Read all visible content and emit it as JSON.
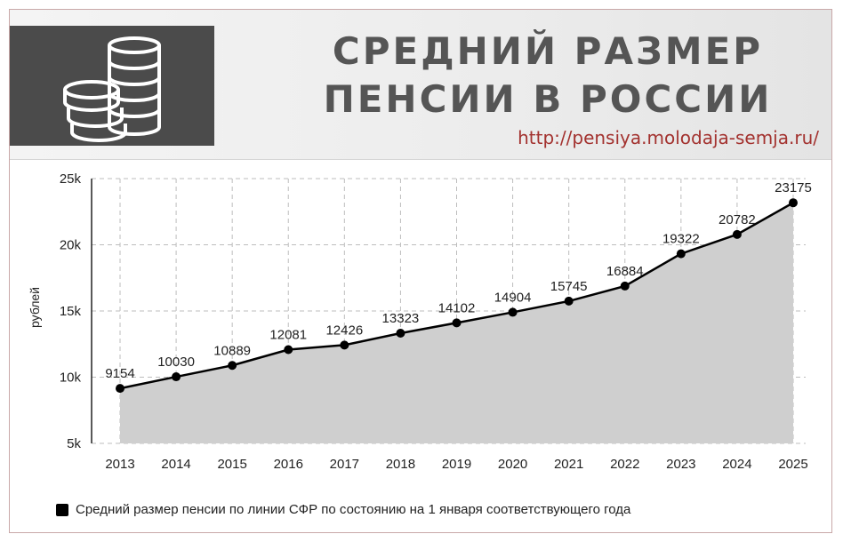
{
  "header": {
    "title_line1": "СРЕДНИЙ РАЗМЕР",
    "title_line2": "ПЕНСИИ В РОССИИ",
    "source_url": "http://pensiya.molodaja-semja.ru/",
    "logo_icon": "coins-icon"
  },
  "chart_data": {
    "type": "area",
    "title": "СРЕДНИЙ РАЗМЕР ПЕНСИИ В РОССИИ",
    "xlabel": "",
    "ylabel": "рублей",
    "categories": [
      "2013",
      "2014",
      "2015",
      "2016",
      "2017",
      "2018",
      "2019",
      "2020",
      "2021",
      "2022",
      "2023",
      "2024",
      "2025"
    ],
    "series": [
      {
        "name": "Средний размер пенсии по линии СФР по состоянию на 1 января соответствующего года",
        "values": [
          9154,
          10030,
          10889,
          12081,
          12426,
          13323,
          14102,
          14904,
          15745,
          16884,
          19322,
          20782,
          23175
        ]
      }
    ],
    "ylim": [
      5000,
      25000
    ],
    "yticks": [
      5000,
      10000,
      15000,
      20000,
      25000
    ],
    "ytick_labels": [
      "5k",
      "10k",
      "15k",
      "20k",
      "25k"
    ],
    "grid": true,
    "legend_position": "bottom-left",
    "colors": {
      "fill": "#cfcfcf",
      "line": "#000000",
      "marker": "#000000",
      "grid": "#bdbdbd"
    }
  }
}
